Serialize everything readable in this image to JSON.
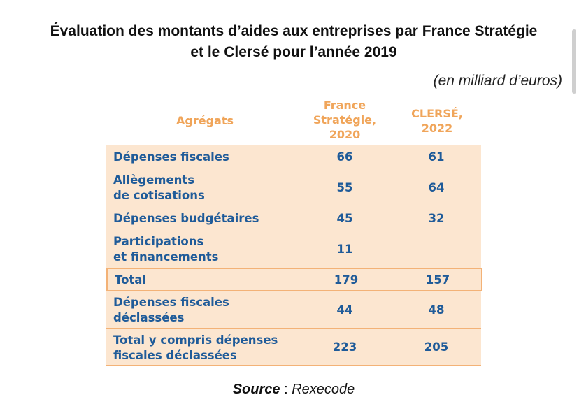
{
  "title_line1": "Évaluation des montants d’aides aux entreprises par France Stratégie",
  "title_line2": "et le Clersé pour l’année 2019",
  "unit": "(en milliard d’euros)",
  "headers": {
    "aggregates": "Agrégats",
    "col1": "France\nStratégie,\n2020",
    "col2": "CLERSÉ,\n2022"
  },
  "rows": [
    {
      "label": "Dépenses fiscales",
      "v1": "66",
      "v2": "61"
    },
    {
      "label": "Allègements\nde cotisations",
      "v1": "55",
      "v2": "64"
    },
    {
      "label": "Dépenses budgétaires",
      "v1": "45",
      "v2": "32"
    },
    {
      "label": "Participations\net financements",
      "v1": "11",
      "v2": ""
    },
    {
      "label": "Total",
      "v1": "179",
      "v2": "157"
    },
    {
      "label": "Dépenses fiscales\ndéclassées",
      "v1": "44",
      "v2": "48"
    },
    {
      "label": "Total y compris dépenses\nfiscales déclassées",
      "v1": "223",
      "v2": "205"
    }
  ],
  "source": {
    "label": "Source",
    "sep": " : ",
    "value": "Rexecode"
  },
  "colors": {
    "header": "#f0a55a",
    "table_bg": "#fce6d0",
    "row_text": "#1f5b99",
    "border": "#f3b277"
  }
}
